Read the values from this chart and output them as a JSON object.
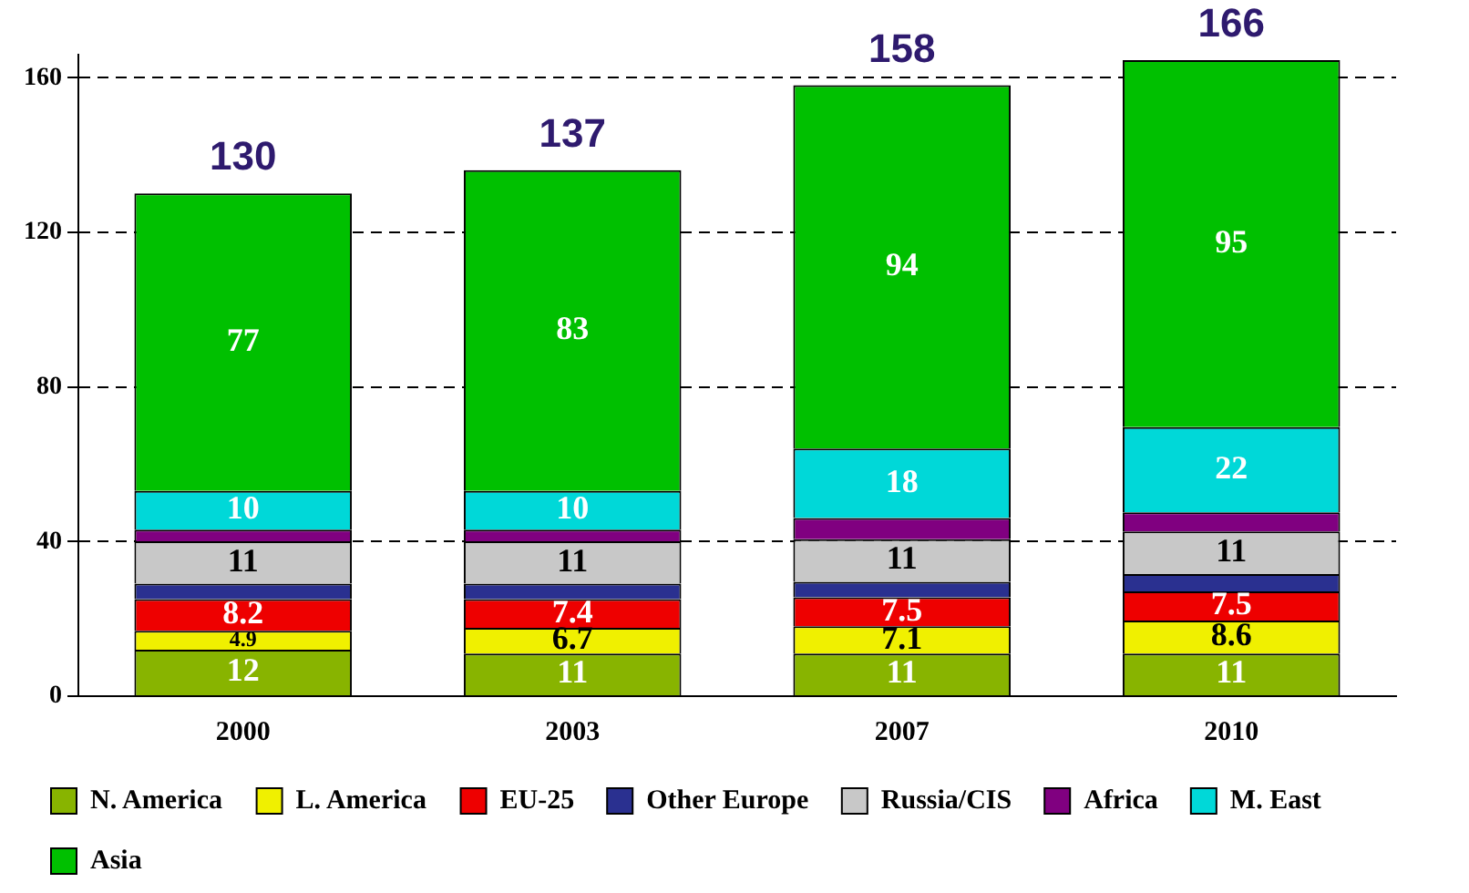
{
  "chart_data": {
    "type": "bar",
    "stacked": true,
    "categories": [
      "2000",
      "2003",
      "2007",
      "2010"
    ],
    "series": [
      {
        "name": "N. America",
        "color": "#88b400",
        "values": [
          12,
          11,
          11,
          11
        ],
        "value_labels": [
          "12",
          "11",
          "11",
          "11"
        ]
      },
      {
        "name": "L. America",
        "color": "#f0f000",
        "values": [
          4.9,
          6.7,
          7.1,
          8.6
        ],
        "value_labels": [
          "4.9",
          "6.7",
          "7.1",
          "8.6"
        ]
      },
      {
        "name": "EU-25",
        "color": "#ee0000",
        "values": [
          8.2,
          7.4,
          7.5,
          7.5
        ],
        "value_labels": [
          "8.2",
          "7.4",
          "7.5",
          "7.5"
        ]
      },
      {
        "name": "Other Europe",
        "color": "#2a3090",
        "values": [
          4,
          4,
          4,
          4.5
        ],
        "value_labels": [
          null,
          null,
          null,
          null
        ]
      },
      {
        "name": "Russia/CIS",
        "color": "#c8c8c8",
        "values": [
          11,
          11,
          11,
          11
        ],
        "value_labels": [
          "11",
          "11",
          "11",
          "11"
        ]
      },
      {
        "name": "Africa",
        "color": "#800080",
        "values": [
          3,
          3,
          5.5,
          5
        ],
        "value_labels": [
          null,
          null,
          null,
          null
        ]
      },
      {
        "name": "M. East",
        "color": "#00d8d8",
        "values": [
          10,
          10,
          18,
          22
        ],
        "value_labels": [
          "10",
          "10",
          "18",
          "22"
        ]
      },
      {
        "name": "Asia",
        "color": "#00c000",
        "values": [
          77,
          83,
          94,
          95
        ],
        "value_labels": [
          "77",
          "83",
          "94",
          "95"
        ]
      }
    ],
    "totals": [
      "130",
      "137",
      "158",
      "166"
    ],
    "ylim": [
      0,
      166
    ],
    "yticks": [
      0,
      40,
      80,
      120,
      160
    ],
    "grid": "y",
    "legend": "bottom"
  }
}
